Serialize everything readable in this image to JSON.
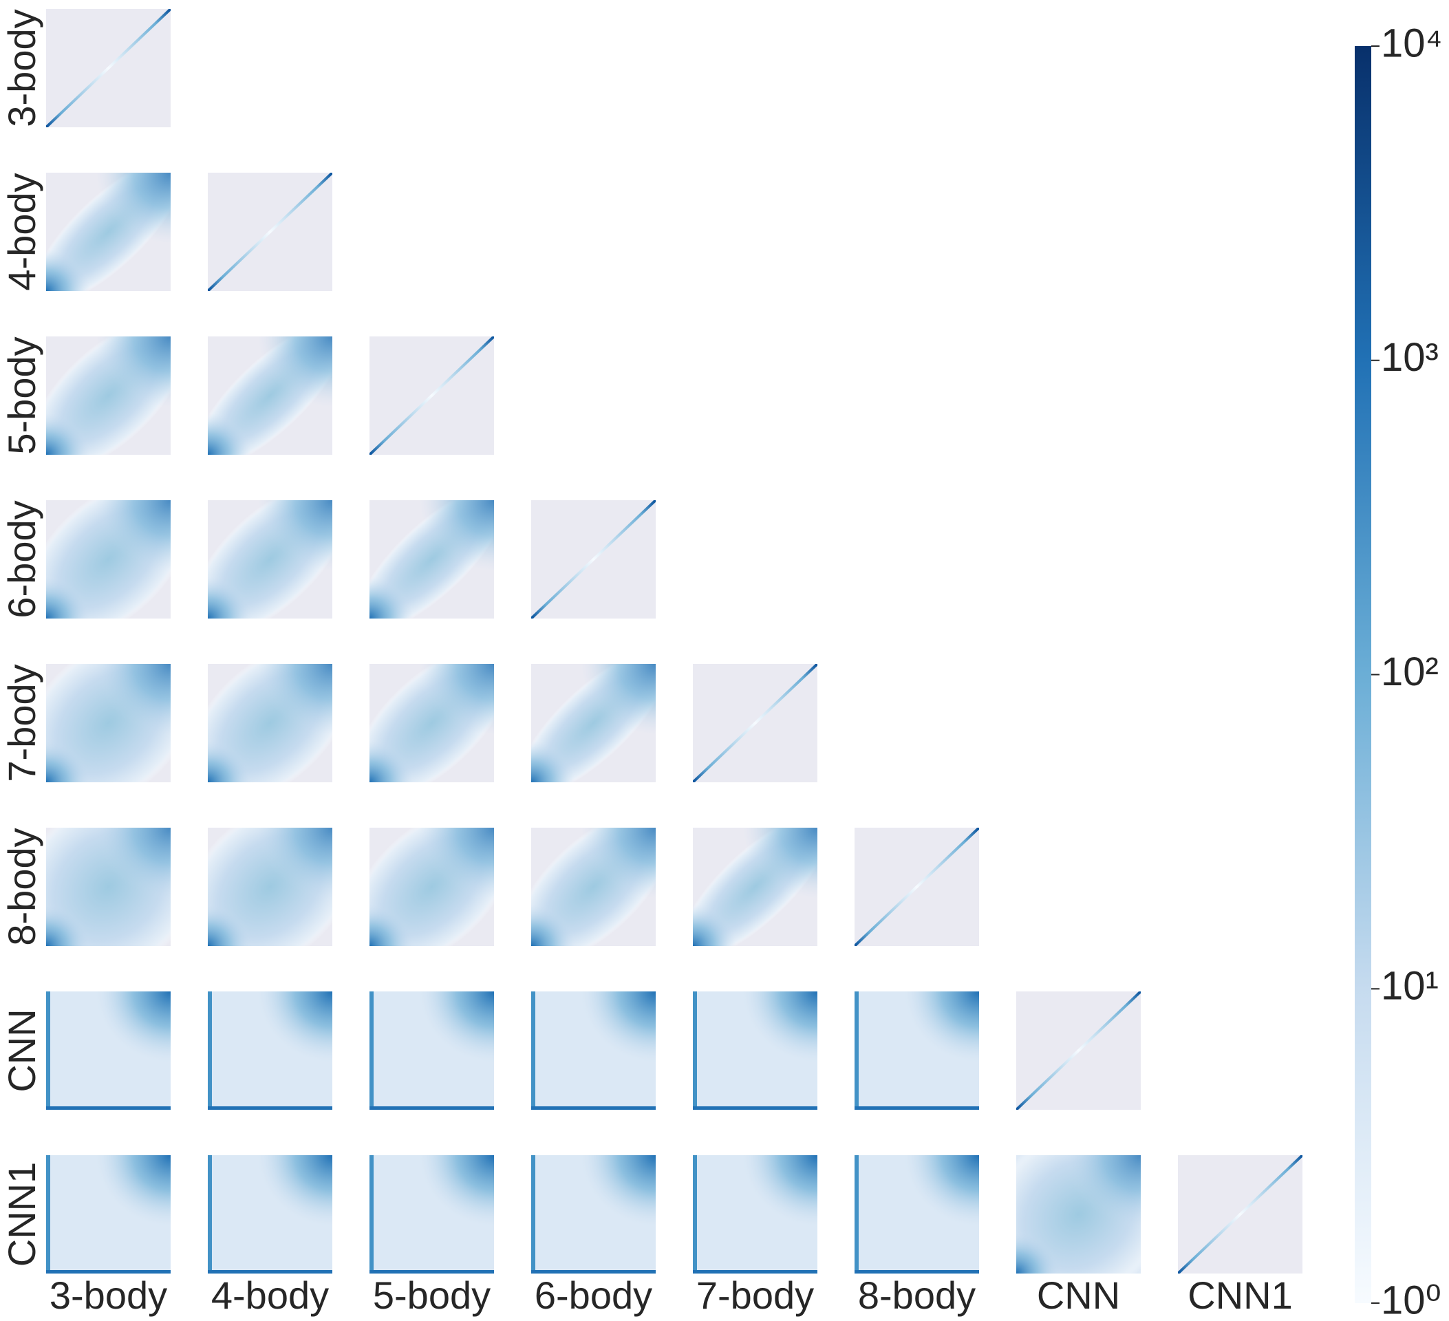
{
  "chart_data": {
    "type": "hist2d_matrix",
    "row_labels": [
      "3-body",
      "4-body",
      "5-body",
      "6-body",
      "7-body",
      "8-body",
      "CNN",
      "CNN1"
    ],
    "col_labels": [
      "3-body",
      "4-body",
      "5-body",
      "6-body",
      "7-body",
      "8-body",
      "CNN",
      "CNN1"
    ],
    "colorbar": {
      "scale": "log",
      "lim": [
        1,
        10000
      ],
      "ticks": [
        {
          "value": 1,
          "label": "10⁰"
        },
        {
          "value": 10,
          "label": "10¹"
        },
        {
          "value": 100,
          "label": "10²"
        },
        {
          "value": 1000,
          "label": "10³"
        },
        {
          "value": 10000,
          "label": "10⁴"
        }
      ],
      "colors": [
        "#f7fbff",
        "#c6dbef",
        "#6baed6",
        "#2171b5",
        "#08306b"
      ]
    }
  }
}
